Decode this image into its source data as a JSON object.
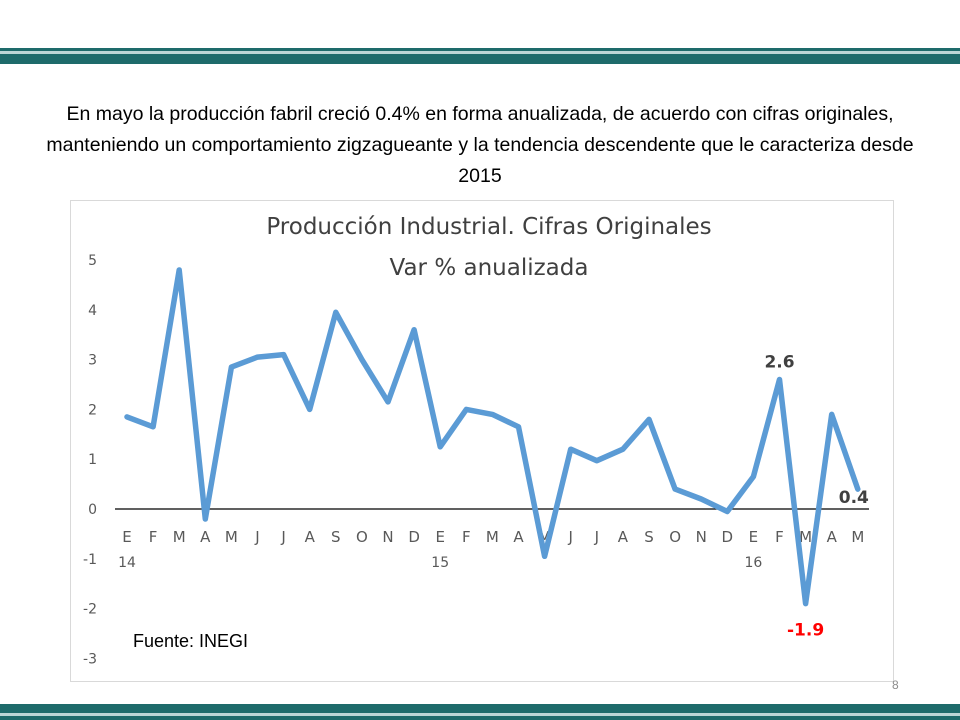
{
  "slide": {
    "headline": "En mayo la producción fabril creció 0.4% en forma anualizada, de acuerdo con cifras originales, manteniendo un comportamiento zigzagueante y la tendencia descendente que le caracteriza desde 2015",
    "page_number": "8",
    "accent_color": "#1e6b6b"
  },
  "chart_data": {
    "type": "line",
    "title": "Producción Industrial. Cifras Originales",
    "subtitle": "Var % anualizada",
    "source": "Fuente: INEGI",
    "categories": [
      "E",
      "F",
      "M",
      "A",
      "M",
      "J",
      "J",
      "A",
      "S",
      "O",
      "N",
      "D",
      "E",
      "F",
      "M",
      "A",
      "M",
      "J",
      "J",
      "A",
      "S",
      "O",
      "N",
      "D",
      "E",
      "F",
      "M",
      "A",
      "M"
    ],
    "year_labels": [
      {
        "index": 0,
        "label": "14"
      },
      {
        "index": 12,
        "label": "15"
      },
      {
        "index": 24,
        "label": "16"
      }
    ],
    "values": [
      1.85,
      1.65,
      4.8,
      -0.2,
      2.85,
      3.05,
      3.1,
      2.0,
      3.95,
      3.0,
      2.15,
      3.6,
      1.25,
      2.0,
      1.9,
      1.65,
      -0.95,
      1.2,
      0.97,
      1.2,
      1.8,
      0.4,
      0.2,
      -0.05,
      0.65,
      2.6,
      -1.9,
      1.9,
      0.4
    ],
    "ylim": [
      -3,
      5
    ],
    "yticks": [
      "-3",
      "-2",
      "-1",
      "0",
      "1",
      "2",
      "3",
      "4",
      "5"
    ],
    "line_color": "#5b9bd5",
    "annotations": [
      {
        "index": 25,
        "label": "2.6",
        "color": "#404040"
      },
      {
        "index": 26,
        "label": "-1.9",
        "color": "#ff0000"
      },
      {
        "index": 28,
        "label": "0.4",
        "color": "#404040"
      }
    ],
    "grid": false
  }
}
